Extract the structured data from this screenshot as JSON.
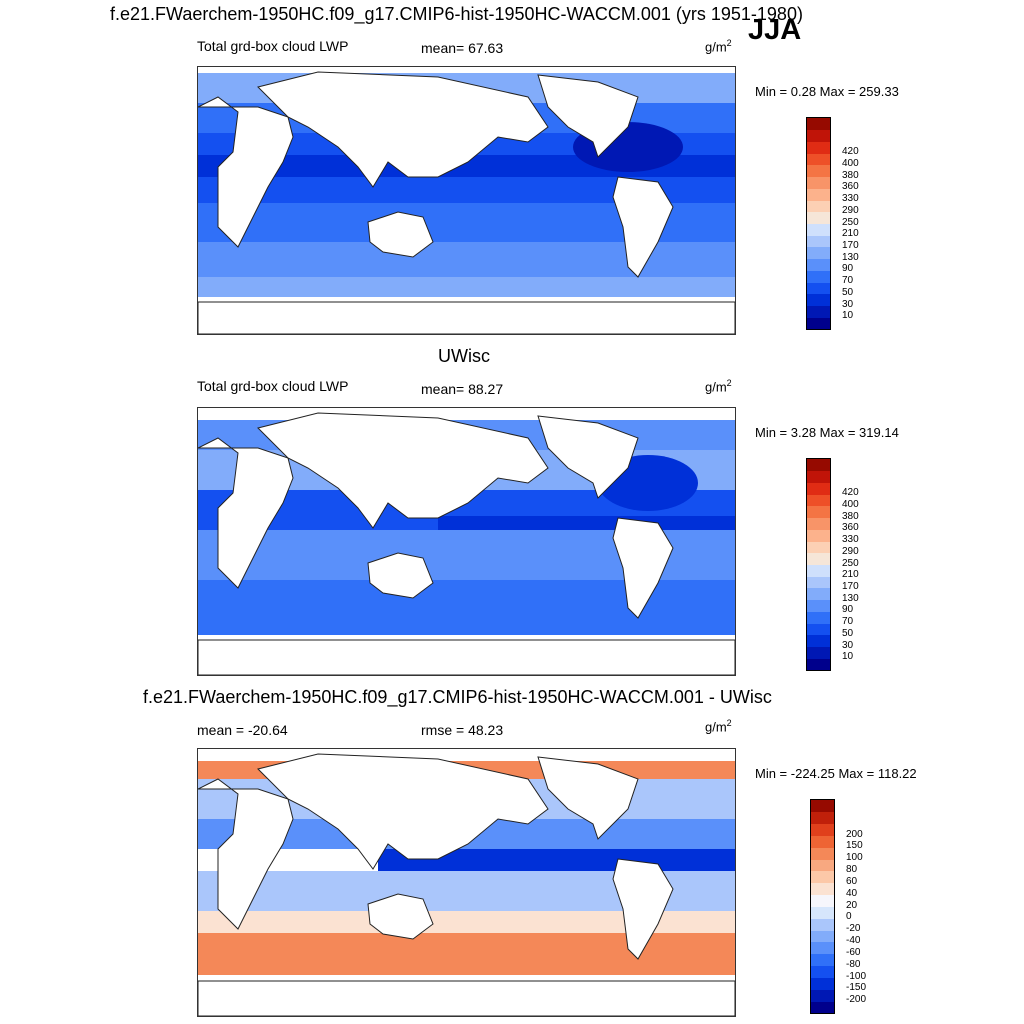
{
  "figure_title": "f.e21.FWaerchem-1950HC.f09_g17.CMIP6-hist-1950HC-WACCM.001 (yrs 1951-1980)",
  "season": "JJA",
  "panels": [
    {
      "id": "model",
      "left_label": "Total grd-box cloud LWP",
      "center_label": "mean=  67.63",
      "units_base": "g/m",
      "units_sup": "2",
      "minmax": "Min =   0.28 Max = 259.33",
      "colorbar": {
        "colors": [
          "#00008c",
          "#0018b4",
          "#0030d8",
          "#1450f0",
          "#3070f8",
          "#5a90fa",
          "#82acfa",
          "#aac6fb",
          "#cfe0fc",
          "#f6e6d8",
          "#fcd0b4",
          "#fcb28c",
          "#f89468",
          "#f47444",
          "#ee5028",
          "#e02c14",
          "#c01408",
          "#960a00"
        ],
        "labels": [
          "10",
          "30",
          "50",
          "70",
          "90",
          "130",
          "170",
          "210",
          "250",
          "290",
          "330",
          "360",
          "380",
          "400",
          "420"
        ]
      }
    },
    {
      "id": "obs",
      "panel_title": "UWisc",
      "left_label": "Total grd-box cloud LWP",
      "center_label": "mean=  88.27",
      "units_base": "g/m",
      "units_sup": "2",
      "minmax": "Min =   3.28 Max = 319.14",
      "colorbar": {
        "colors": [
          "#00008c",
          "#0018b4",
          "#0030d8",
          "#1450f0",
          "#3070f8",
          "#5a90fa",
          "#82acfa",
          "#aac6fb",
          "#cfe0fc",
          "#f6e6d8",
          "#fcd0b4",
          "#fcb28c",
          "#f89468",
          "#f47444",
          "#ee5028",
          "#e02c14",
          "#c01408",
          "#960a00"
        ],
        "labels": [
          "10",
          "30",
          "50",
          "70",
          "90",
          "130",
          "170",
          "210",
          "250",
          "290",
          "330",
          "360",
          "380",
          "400",
          "420"
        ]
      }
    },
    {
      "id": "diff",
      "panel_title": "f.e21.FWaerchem-1950HC.f09_g17.CMIP6-hist-1950HC-WACCM.001 - UWisc",
      "left_label": "mean = -20.64",
      "center_label": "rmse =  48.23",
      "units_base": "g/m",
      "units_sup": "2",
      "minmax": "Min = -224.25 Max = 118.22",
      "colorbar": {
        "colors": [
          "#00008c",
          "#0018b4",
          "#0030d8",
          "#1450f0",
          "#3070f8",
          "#5a90fa",
          "#82acfa",
          "#aac6fb",
          "#d6e6fc",
          "#f6f6fc",
          "#fbe2d2",
          "#fcc8a8",
          "#f8a880",
          "#f48858",
          "#ee6434",
          "#e0401c",
          "#c0200a",
          "#960a00"
        ],
        "labels": [
          "-200",
          "-150",
          "-100",
          "-80",
          "-60",
          "-40",
          "-20",
          "0",
          "20",
          "40",
          "60",
          "80",
          "100",
          "150",
          "200"
        ]
      }
    }
  ]
}
